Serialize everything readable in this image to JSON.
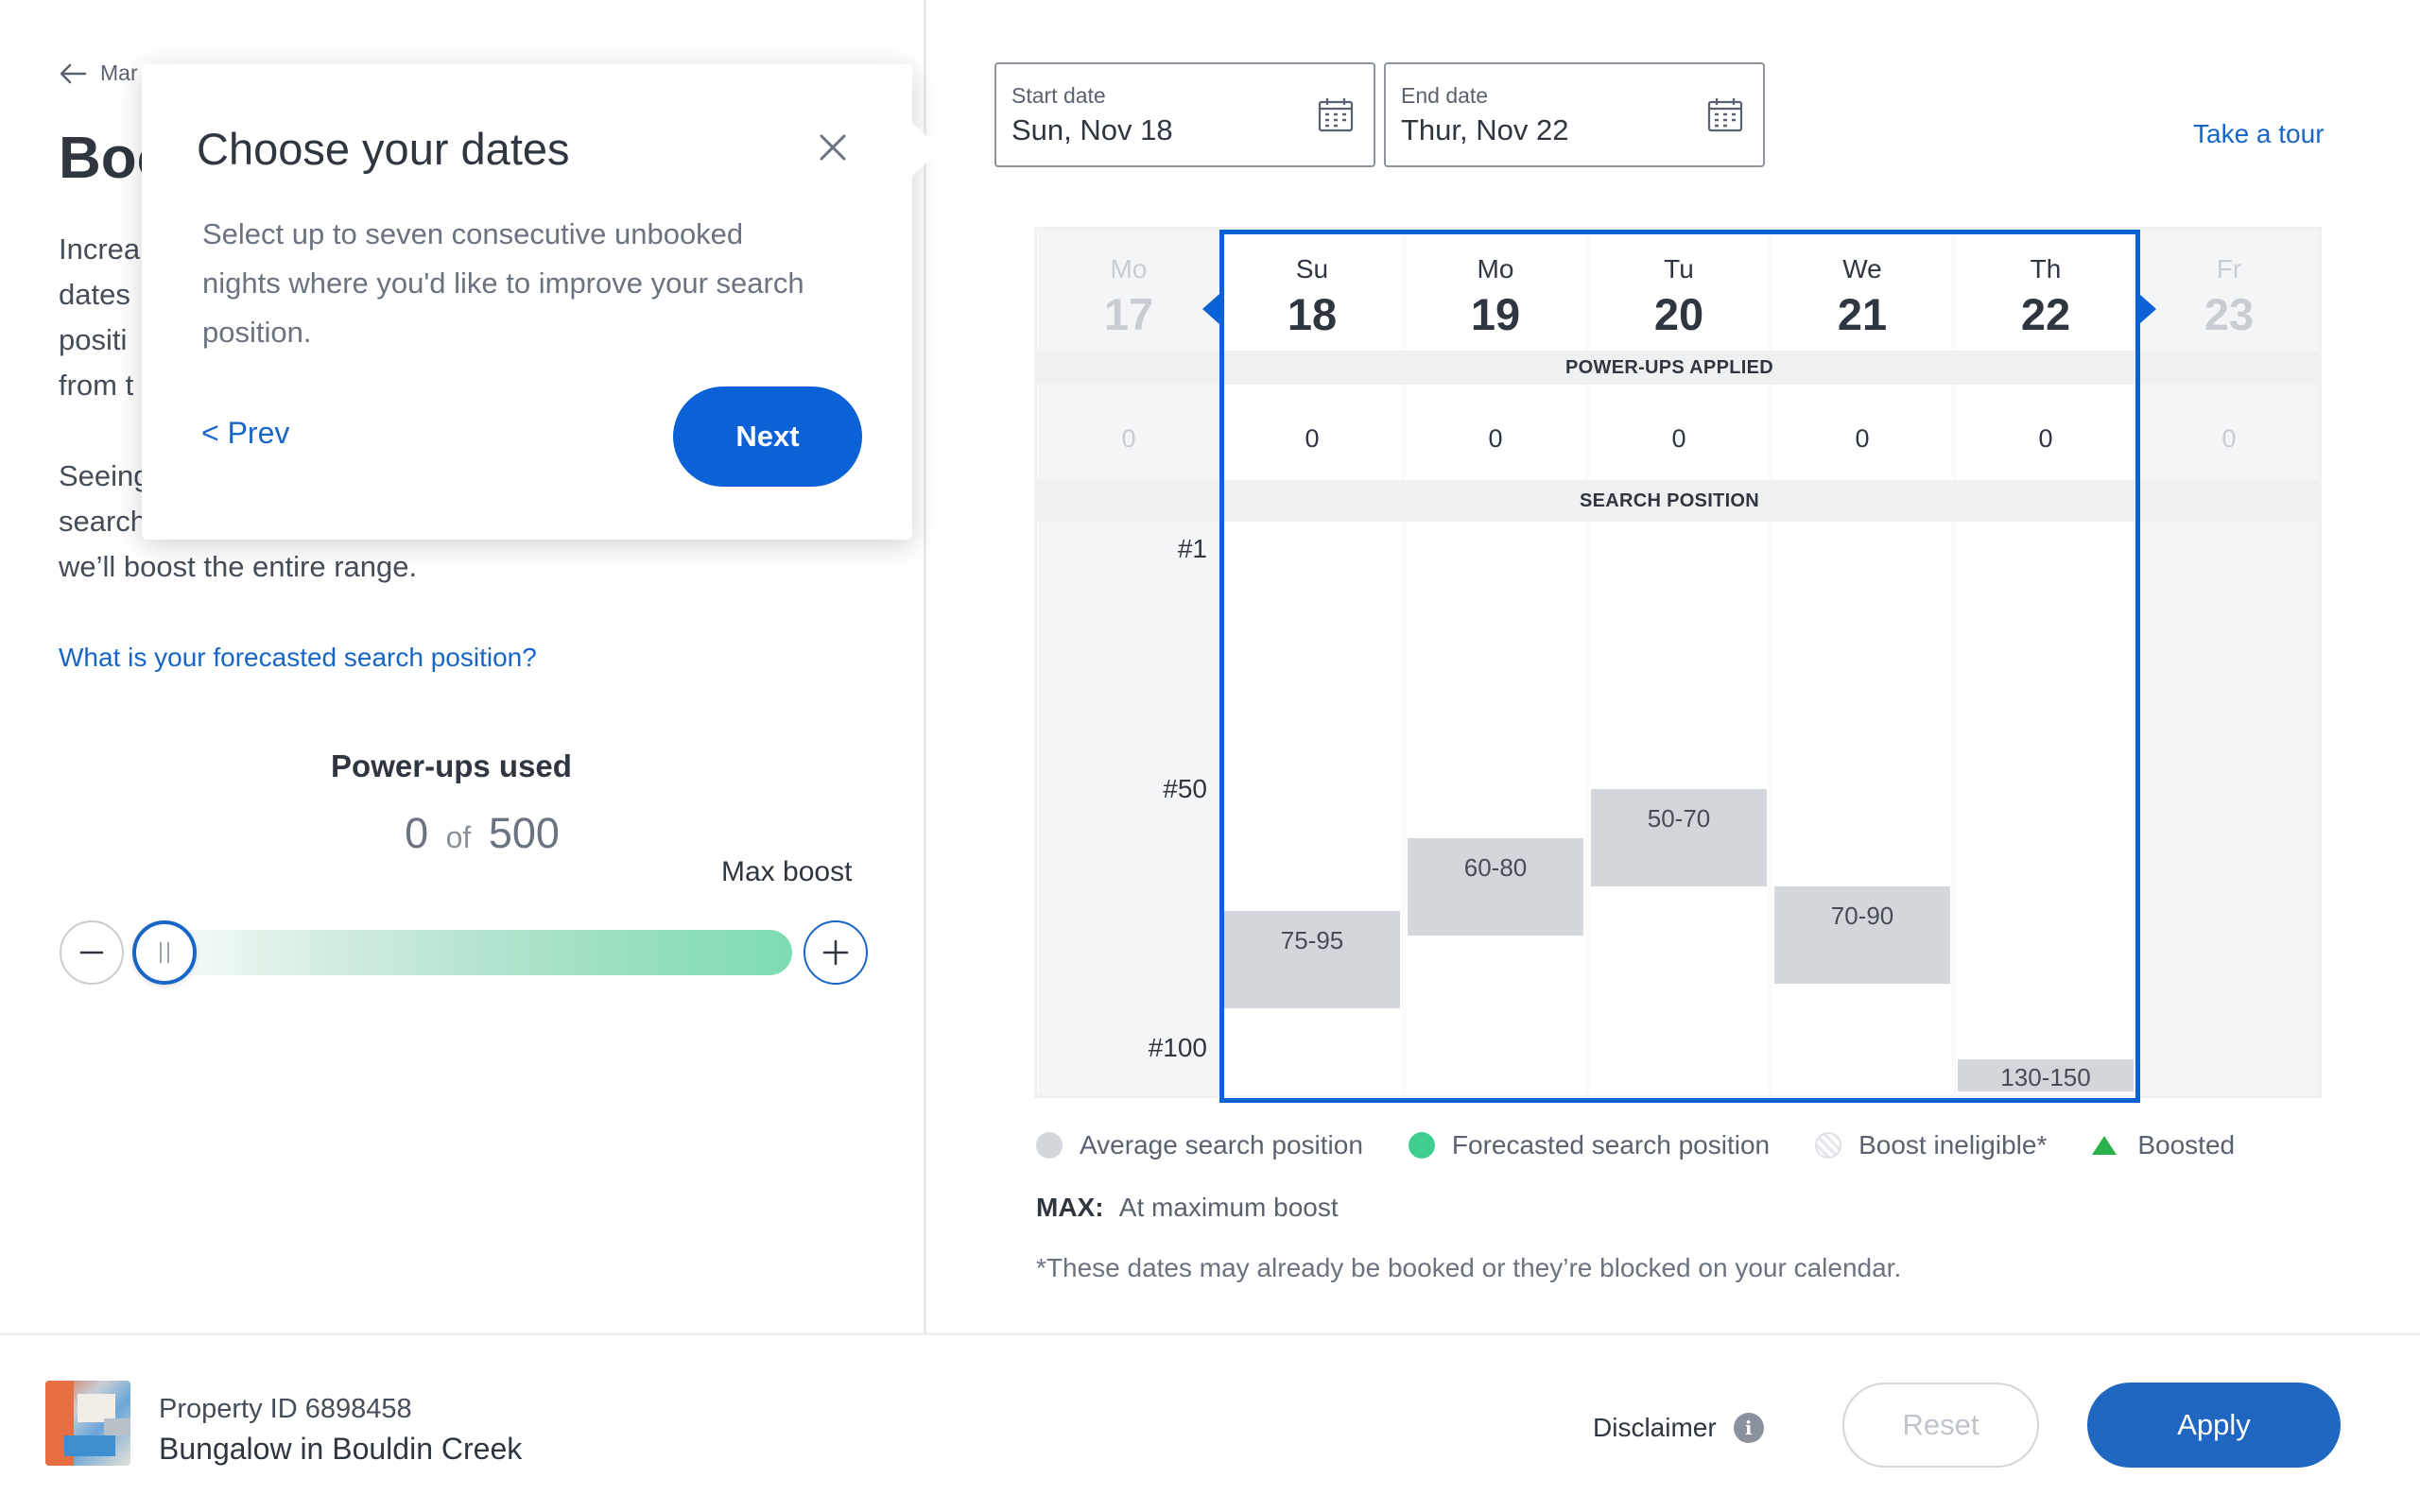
{
  "nav": {
    "back_label": "Mar"
  },
  "page": {
    "title": "Boost",
    "intro_lines": [
      "Increa",
      "dates",
      "positi",
      "from t"
    ],
    "intro2_lines": [
      "Seeing",
      "search",
      "we’ll boost the entire range."
    ],
    "forecast_link": "What is your forecasted search position?"
  },
  "powerups": {
    "title": "Power-ups used",
    "used": "0",
    "of": "of",
    "total": "500",
    "max_boost_label": "Max boost",
    "slider_level": 0
  },
  "popover": {
    "title": "Choose your dates",
    "body": "Select up to seven consecutive unbooked nights where you'd like to improve your search position.",
    "prev_label": "< Prev",
    "next_label": "Next"
  },
  "dates": {
    "start_label": "Start date",
    "start_value": "Sun, Nov 18",
    "end_label": "End date",
    "end_value": "Thur, Nov 22",
    "take_tour": "Take a tour"
  },
  "calendar": {
    "powerups_band": "POWER-UPS APPLIED",
    "search_band": "SEARCH POSITION",
    "y_labels": [
      "#1",
      "#50",
      "#100"
    ],
    "days": [
      {
        "name": "Mo",
        "num": "17",
        "powerups": "0",
        "selected": false
      },
      {
        "name": "Su",
        "num": "18",
        "powerups": "0",
        "selected": true,
        "range": "75-95"
      },
      {
        "name": "Mo",
        "num": "19",
        "powerups": "0",
        "selected": true,
        "range": "60-80"
      },
      {
        "name": "Tu",
        "num": "20",
        "powerups": "0",
        "selected": true,
        "range": "50-70"
      },
      {
        "name": "We",
        "num": "21",
        "powerups": "0",
        "selected": true,
        "range": "70-90"
      },
      {
        "name": "Th",
        "num": "22",
        "powerups": "0",
        "selected": true,
        "range": "130-150"
      },
      {
        "name": "Fr",
        "num": "23",
        "powerups": "0",
        "selected": false
      }
    ]
  },
  "legend": {
    "average": "Average search position",
    "forecasted": "Forecasted search position",
    "ineligible": "Boost ineligible*",
    "boosted": "Boosted",
    "average_color": "#d3d6da",
    "forecasted_color": "#3ecf8e",
    "boosted_color": "#2bb24c",
    "max_label": "MAX:",
    "max_text": "At maximum boost",
    "footnote": "*These dates may already be booked or they’re blocked on your calendar."
  },
  "footer": {
    "property_id": "Property ID 6898458",
    "property_name": "Bungalow in Bouldin Creek",
    "disclaimer": "Disclaimer",
    "reset": "Reset",
    "apply": "Apply"
  },
  "colors": {
    "accent": "#0b62d6",
    "link": "#1766c7"
  }
}
